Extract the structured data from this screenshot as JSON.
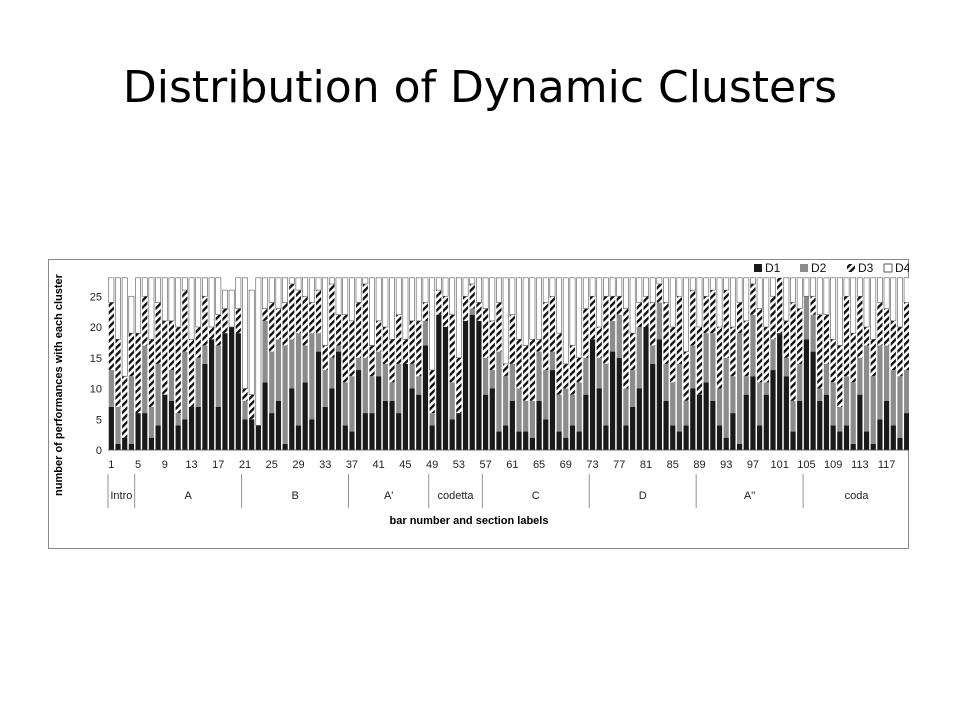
{
  "slide": {
    "title": "Distribution of Dynamic Clusters"
  },
  "chart_data": {
    "type": "bar",
    "stacked": true,
    "title": "",
    "xlabel": "bar number and section labels",
    "ylabel": "number of performances with each cluster",
    "ylim": [
      0,
      28
    ],
    "yticks": [
      0,
      5,
      10,
      15,
      20,
      25
    ],
    "x_tick_labels": [
      "1",
      "5",
      "9",
      "13",
      "17",
      "21",
      "25",
      "29",
      "33",
      "37",
      "41",
      "45",
      "49",
      "53",
      "57",
      "61",
      "65",
      "69",
      "73",
      "77",
      "81",
      "85",
      "89",
      "93",
      "97",
      "101",
      "105",
      "109",
      "113",
      "117"
    ],
    "categories": [
      "1",
      "2",
      "3",
      "4",
      "5",
      "6",
      "7",
      "8",
      "9",
      "10",
      "11",
      "12",
      "13",
      "14",
      "15",
      "16",
      "17",
      "18",
      "19",
      "20",
      "21",
      "22",
      "23",
      "24",
      "25",
      "26",
      "27",
      "28",
      "29",
      "30",
      "31",
      "32",
      "33",
      "34",
      "35",
      "36",
      "37",
      "38",
      "39",
      "40",
      "41",
      "42",
      "43",
      "44",
      "45",
      "46",
      "47",
      "48",
      "49",
      "50",
      "51",
      "52",
      "53",
      "54",
      "55",
      "56",
      "57",
      "58",
      "59",
      "60",
      "61",
      "62",
      "63",
      "64",
      "65",
      "66",
      "67",
      "68",
      "69",
      "70",
      "71",
      "72",
      "73",
      "74",
      "75",
      "76",
      "77",
      "78",
      "79",
      "80",
      "81",
      "82",
      "83",
      "84",
      "85",
      "86",
      "87",
      "88",
      "89",
      "90",
      "91",
      "92",
      "93",
      "94",
      "95",
      "96",
      "97",
      "98",
      "99",
      "100",
      "101",
      "102",
      "103",
      "104",
      "105",
      "106",
      "107",
      "108",
      "109",
      "110",
      "111",
      "112",
      "113",
      "114",
      "115",
      "116",
      "117",
      "118",
      "119",
      "120"
    ],
    "sections": [
      {
        "label": "Intro",
        "start": 1,
        "end": 4
      },
      {
        "label": "A",
        "start": 5,
        "end": 20
      },
      {
        "label": "B",
        "start": 21,
        "end": 36
      },
      {
        "label": "A'",
        "start": 37,
        "end": 48
      },
      {
        "label": "codetta",
        "start": 49,
        "end": 56
      },
      {
        "label": "C",
        "start": 57,
        "end": 72
      },
      {
        "label": "D",
        "start": 73,
        "end": 88
      },
      {
        "label": "A''",
        "start": 89,
        "end": 104
      },
      {
        "label": "coda",
        "start": 105,
        "end": 120
      }
    ],
    "legend_position": "top-right",
    "series": [
      {
        "name": "D1",
        "color": "#1a1a1a",
        "pattern": "solid",
        "values": [
          7,
          1,
          2,
          1,
          6,
          6,
          2,
          4,
          9,
          8,
          4,
          5,
          7,
          7,
          14,
          18,
          7,
          19,
          20,
          19,
          5,
          5,
          4,
          11,
          6,
          8,
          1,
          10,
          4,
          11,
          5,
          16,
          7,
          10,
          16,
          4,
          3,
          13,
          6,
          6,
          12,
          8,
          8,
          6,
          14,
          10,
          9,
          17,
          4,
          22,
          20,
          5,
          6,
          21,
          22,
          21,
          9,
          10,
          3,
          4,
          8,
          3,
          3,
          2,
          8,
          5,
          13,
          3,
          2,
          4,
          3,
          9,
          18,
          10,
          4,
          16,
          15,
          4,
          7,
          10,
          20,
          14,
          18,
          8,
          4,
          3,
          4,
          10,
          9,
          11,
          8,
          4,
          2,
          6,
          1,
          9,
          12,
          4,
          9,
          13,
          19,
          12,
          3,
          8,
          18,
          16,
          8,
          9,
          4,
          3,
          4,
          1,
          9,
          3,
          1,
          5,
          8,
          4,
          2,
          6
        ]
      },
      {
        "name": "D2",
        "color": "#8c8c8c",
        "pattern": "solid",
        "values": [
          6,
          6,
          0,
          11,
          0,
          11,
          5,
          10,
          0,
          5,
          2,
          11,
          0,
          8,
          3,
          0,
          10,
          0,
          0,
          0,
          3,
          0,
          0,
          10,
          10,
          10,
          16,
          8,
          15,
          6,
          14,
          3,
          6,
          5,
          1,
          7,
          9,
          2,
          9,
          6,
          4,
          6,
          3,
          8,
          0,
          4,
          3,
          4,
          2,
          0,
          0,
          6,
          0,
          0,
          1,
          0,
          6,
          3,
          13,
          8,
          6,
          7,
          5,
          6,
          8,
          8,
          3,
          6,
          8,
          5,
          8,
          6,
          0,
          5,
          10,
          5,
          7,
          6,
          6,
          10,
          0,
          3,
          6,
          6,
          7,
          11,
          4,
          7,
          0,
          8,
          11,
          6,
          13,
          6,
          18,
          3,
          10,
          7,
          2,
          5,
          0,
          3,
          5,
          6,
          7,
          6,
          2,
          5,
          7,
          4,
          8,
          10,
          6,
          14,
          11,
          12,
          9,
          9,
          10,
          7
        ]
      },
      {
        "name": "D3",
        "color": "#ffffff",
        "pattern": "hatch",
        "values": [
          11,
          11,
          10,
          7,
          13,
          8,
          11,
          10,
          12,
          8,
          14,
          10,
          11,
          5,
          8,
          2,
          5,
          4,
          0,
          4,
          2,
          4,
          0,
          2,
          8,
          5,
          7,
          9,
          7,
          8,
          5,
          7,
          4,
          12,
          5,
          11,
          9,
          9,
          12,
          5,
          5,
          6,
          7,
          8,
          4,
          7,
          9,
          3,
          7,
          4,
          5,
          11,
          9,
          4,
          4,
          3,
          8,
          8,
          8,
          2,
          8,
          8,
          9,
          10,
          2,
          11,
          9,
          10,
          4,
          8,
          4,
          8,
          7,
          5,
          11,
          4,
          3,
          13,
          6,
          4,
          5,
          7,
          3,
          10,
          9,
          11,
          8,
          9,
          11,
          6,
          7,
          10,
          11,
          8,
          5,
          9,
          5,
          12,
          9,
          7,
          9,
          6,
          16,
          9,
          0,
          3,
          12,
          8,
          7,
          10,
          13,
          8,
          10,
          3,
          6,
          7,
          6,
          8,
          8,
          11
        ]
      },
      {
        "name": "D4",
        "color": "#ffffff",
        "pattern": "outline",
        "values": [
          4,
          10,
          16,
          6,
          9,
          3,
          10,
          4,
          7,
          7,
          8,
          2,
          10,
          8,
          3,
          8,
          6,
          3,
          6,
          5,
          18,
          17,
          24,
          5,
          4,
          5,
          4,
          1,
          2,
          3,
          4,
          2,
          11,
          1,
          6,
          6,
          7,
          4,
          1,
          11,
          7,
          8,
          10,
          6,
          10,
          7,
          7,
          4,
          15,
          2,
          3,
          6,
          13,
          3,
          1,
          4,
          5,
          7,
          4,
          14,
          6,
          10,
          11,
          10,
          10,
          4,
          3,
          9,
          14,
          11,
          13,
          5,
          3,
          8,
          3,
          3,
          3,
          5,
          9,
          4,
          3,
          4,
          1,
          4,
          8,
          3,
          12,
          2,
          8,
          3,
          2,
          8,
          2,
          8,
          4,
          7,
          1,
          5,
          8,
          3,
          0,
          7,
          4,
          5,
          3,
          3,
          6,
          6,
          10,
          11,
          3,
          9,
          3,
          8,
          10,
          4,
          5,
          7,
          8,
          4
        ]
      }
    ]
  }
}
